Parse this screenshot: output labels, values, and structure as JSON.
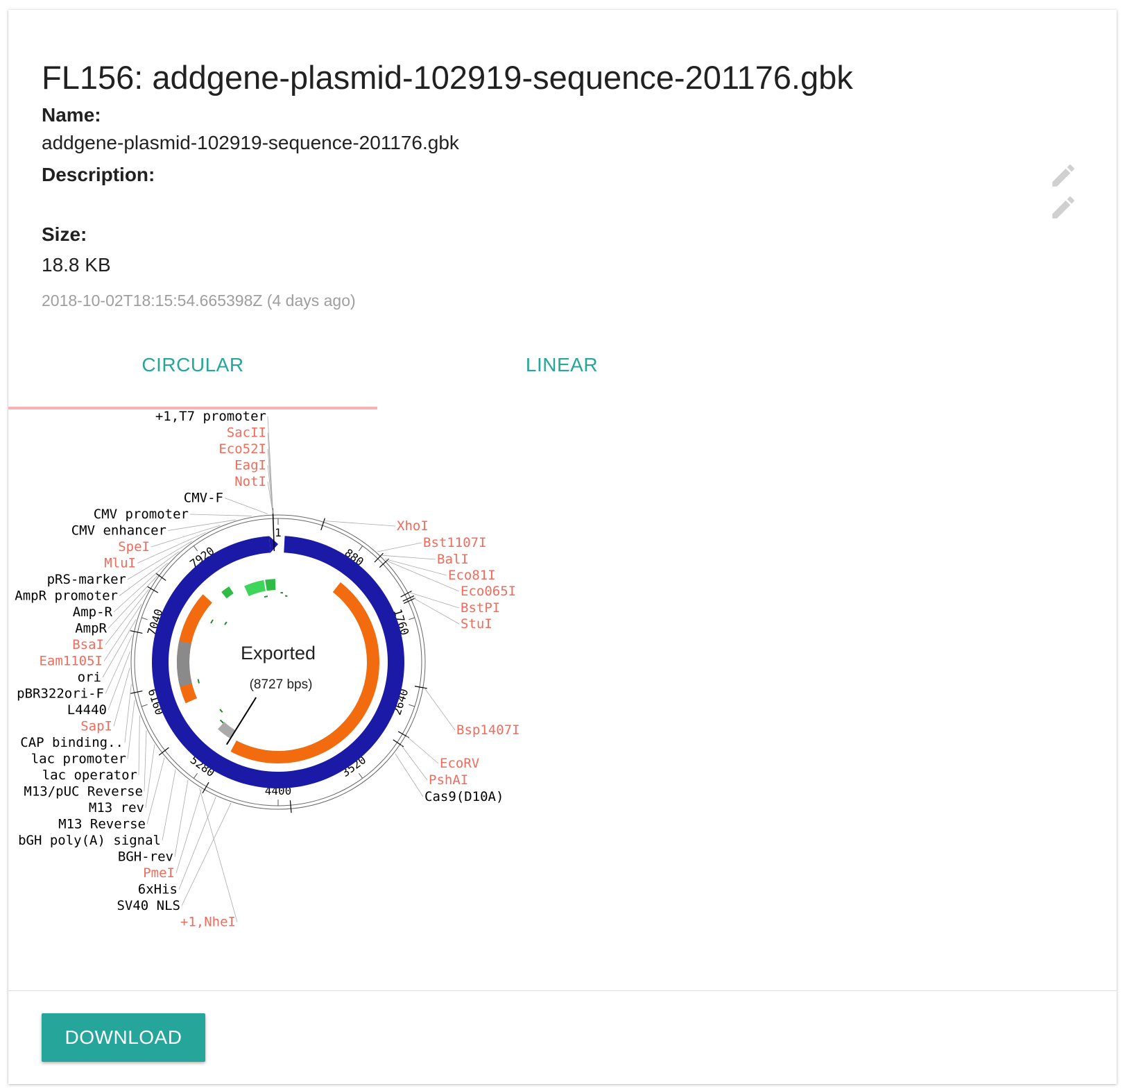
{
  "file": {
    "title": "FL156: addgene-plasmid-102919-sequence-201176.gbk",
    "name_label": "Name:",
    "name_value": "addgene-plasmid-102919-sequence-201176.gbk",
    "description_label": "Description:",
    "size_label": "Size:",
    "size_value": "18.8 KB",
    "timestamp": "2018-10-02T18:15:54.665398Z (4 days ago)"
  },
  "tabs": [
    {
      "label": "CIRCULAR",
      "active": true
    },
    {
      "label": "LINEAR",
      "active": false
    }
  ],
  "plasmid": {
    "name": "Exported",
    "length_text": "(8727 bps)",
    "length": 8727,
    "ticks": [
      "1",
      "880",
      "1760",
      "2640",
      "3520",
      "4400",
      "5280",
      "6160",
      "7040",
      "7920"
    ],
    "left_labels": [
      {
        "text": "+1,T7 promoter",
        "type": "feature"
      },
      {
        "text": "SacII",
        "type": "enzyme"
      },
      {
        "text": "Eco52I",
        "type": "enzyme"
      },
      {
        "text": "EagI",
        "type": "enzyme"
      },
      {
        "text": "NotI",
        "type": "enzyme"
      },
      {
        "text": "CMV-F",
        "type": "feature"
      },
      {
        "text": "CMV promoter",
        "type": "feature"
      },
      {
        "text": "CMV enhancer",
        "type": "feature"
      },
      {
        "text": "SpeI",
        "type": "enzyme"
      },
      {
        "text": "MluI",
        "type": "enzyme"
      },
      {
        "text": "pRS-marker",
        "type": "feature"
      },
      {
        "text": "AmpR promoter",
        "type": "feature"
      },
      {
        "text": "Amp-R",
        "type": "feature"
      },
      {
        "text": "AmpR",
        "type": "feature"
      },
      {
        "text": "BsaI",
        "type": "enzyme"
      },
      {
        "text": "Eam1105I",
        "type": "enzyme"
      },
      {
        "text": "ori",
        "type": "feature"
      },
      {
        "text": "pBR322ori-F",
        "type": "feature"
      },
      {
        "text": "L4440",
        "type": "feature"
      },
      {
        "text": "SapI",
        "type": "enzyme"
      },
      {
        "text": "CAP binding..",
        "type": "feature"
      },
      {
        "text": "lac promoter",
        "type": "feature"
      },
      {
        "text": "lac operator",
        "type": "feature"
      },
      {
        "text": "M13/pUC Reverse",
        "type": "feature"
      },
      {
        "text": "M13 rev",
        "type": "feature"
      },
      {
        "text": "M13 Reverse",
        "type": "feature"
      },
      {
        "text": "bGH poly(A) signal",
        "type": "feature"
      },
      {
        "text": "BGH-rev",
        "type": "feature"
      },
      {
        "text": "PmeI",
        "type": "enzyme"
      },
      {
        "text": "6xHis",
        "type": "feature"
      },
      {
        "text": "SV40 NLS",
        "type": "feature"
      },
      {
        "text": "+1,NheI",
        "type": "enzyme"
      }
    ],
    "right_labels": [
      {
        "text": "XhoI",
        "type": "enzyme"
      },
      {
        "text": "Bst1107I",
        "type": "enzyme"
      },
      {
        "text": "BalI",
        "type": "enzyme"
      },
      {
        "text": "Eco81I",
        "type": "enzyme"
      },
      {
        "text": "Eco065I",
        "type": "enzyme"
      },
      {
        "text": "BstPI",
        "type": "enzyme"
      },
      {
        "text": "StuI",
        "type": "enzyme"
      },
      {
        "text": "Bsp1407I",
        "type": "enzyme"
      },
      {
        "text": "EcoRV",
        "type": "enzyme"
      },
      {
        "text": "PshAI",
        "type": "enzyme"
      },
      {
        "text": "Cas9(D10A)",
        "type": "feature"
      }
    ],
    "colors": {
      "backbone": "#1a1aa6",
      "cds": "#f26b0f",
      "promoter": "#3dd65a",
      "primer": "#1e8a2e",
      "origin": "#8a8a8a",
      "enzyme_label": "#f26b5b",
      "feature_label": "#000000"
    }
  },
  "actions": {
    "download_label": "DOWNLOAD",
    "edit_icon": "pencil-icon"
  },
  "theme": {
    "accent": "#26a69a",
    "tab_indicator": "#f6b2b5"
  }
}
